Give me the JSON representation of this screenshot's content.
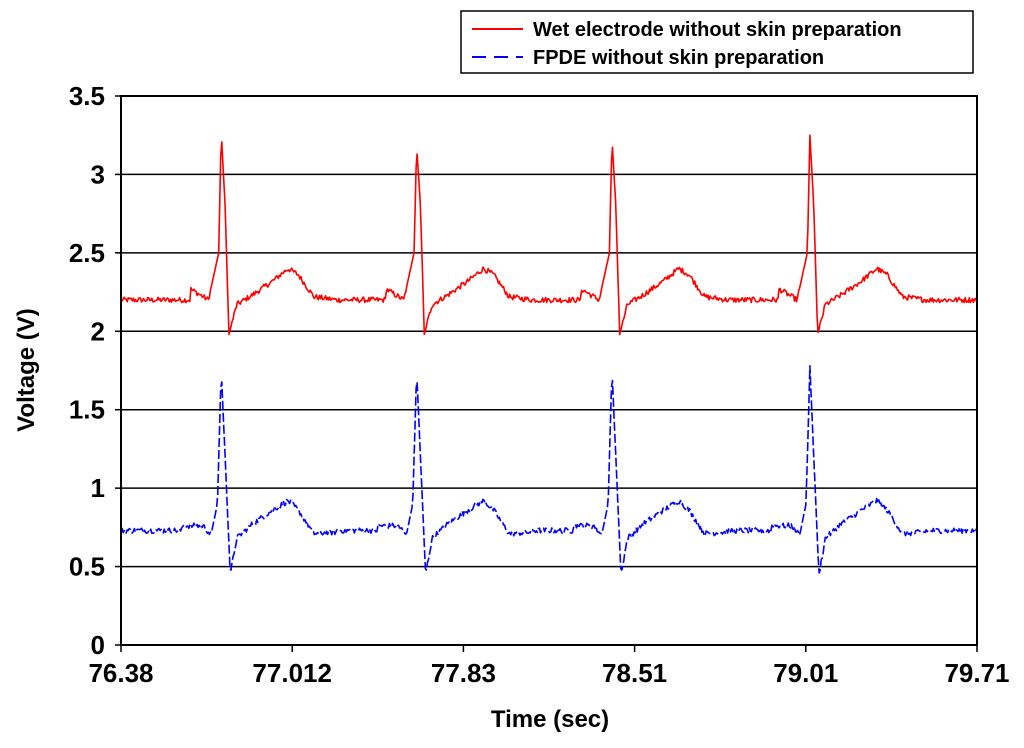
{
  "chart_data": {
    "type": "line",
    "title": "",
    "xlabel": "Time (sec)",
    "ylabel": "Voltage (V)",
    "xlim": [
      76.38,
      79.71
    ],
    "ylim": [
      0,
      3.5
    ],
    "x_tick_labels": [
      "76.38",
      "77.012",
      "77.83",
      "78.51",
      "79.01",
      "79.71"
    ],
    "y_tick_labels": [
      "0",
      "0.5",
      "1",
      "1.5",
      "2",
      "2.5",
      "3",
      "3.5"
    ],
    "y_ticks": [
      0,
      0.5,
      1,
      1.5,
      2,
      2.5,
      3,
      3.5
    ],
    "grid": "horizontal",
    "legend_position": "top-right",
    "beat_times": [
      76.77,
      77.53,
      78.29,
      79.06
    ],
    "series": [
      {
        "name": "Wet electrode without skin preparation",
        "color": "#ff0000",
        "style": "solid",
        "baseline": 2.2,
        "features": [
          {
            "offset": -0.12,
            "value": 2.27
          },
          {
            "offset": -0.05,
            "value": 2.2
          },
          {
            "offset": -0.01,
            "value": 2.5
          },
          {
            "offset": 0.0,
            "value": 3.27
          },
          {
            "offset": 0.015,
            "value": 2.8
          },
          {
            "offset": 0.03,
            "value": 1.98
          },
          {
            "offset": 0.06,
            "value": 2.17
          },
          {
            "offset": 0.12,
            "value": 2.23
          },
          {
            "offset": 0.2,
            "value": 2.32
          },
          {
            "offset": 0.26,
            "value": 2.4
          },
          {
            "offset": 0.3,
            "value": 2.36
          },
          {
            "offset": 0.36,
            "value": 2.22
          },
          {
            "offset": 0.45,
            "value": 2.2
          }
        ],
        "peaks": [
          3.27,
          3.18,
          3.23,
          3.25
        ]
      },
      {
        "name": "FPDE without skin preparation",
        "color": "#0000ff",
        "style": "dashed",
        "baseline": 0.73,
        "features": [
          {
            "offset": -0.15,
            "value": 0.76
          },
          {
            "offset": -0.07,
            "value": 0.76
          },
          {
            "offset": -0.04,
            "value": 0.7
          },
          {
            "offset": -0.015,
            "value": 0.9
          },
          {
            "offset": 0.0,
            "value": 1.75
          },
          {
            "offset": 0.015,
            "value": 1.2
          },
          {
            "offset": 0.035,
            "value": 0.45
          },
          {
            "offset": 0.06,
            "value": 0.68
          },
          {
            "offset": 0.12,
            "value": 0.77
          },
          {
            "offset": 0.2,
            "value": 0.86
          },
          {
            "offset": 0.26,
            "value": 0.92
          },
          {
            "offset": 0.3,
            "value": 0.86
          },
          {
            "offset": 0.36,
            "value": 0.71
          },
          {
            "offset": 0.45,
            "value": 0.72
          }
        ],
        "peaks": [
          1.75,
          1.75,
          1.76,
          1.78
        ]
      }
    ]
  }
}
